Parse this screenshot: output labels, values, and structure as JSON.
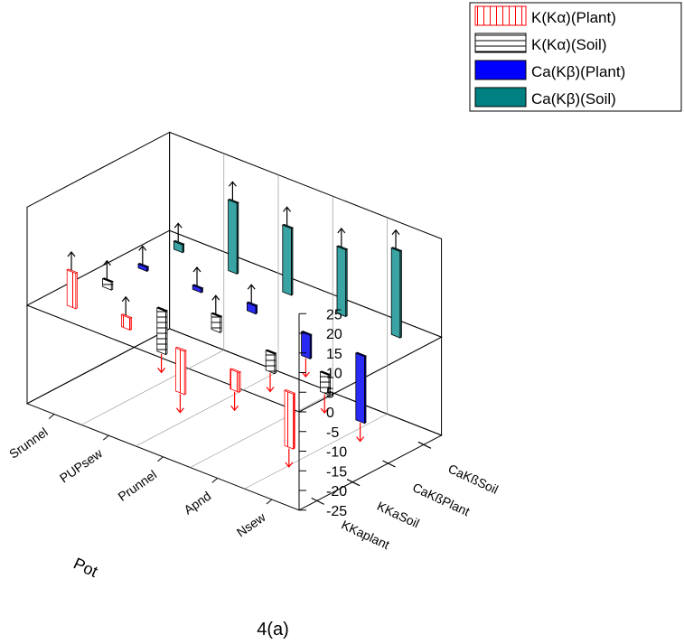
{
  "caption": "4(a)",
  "legend": [
    {
      "label": "K(Kα)(Plant)",
      "pattern": "vlines",
      "color": "#ff0000"
    },
    {
      "label": "K(Kα)(Soil)",
      "pattern": "hlines",
      "color": "#000000"
    },
    {
      "label": "Ca(Kβ)(Plant)",
      "pattern": "solid",
      "color": "#0000ff"
    },
    {
      "label": "Ca(Kβ)(Soil)",
      "pattern": "solid",
      "color": "#008080"
    }
  ],
  "chart_data": {
    "type": "bar",
    "subtype": "3d-bar",
    "x_axis": {
      "label": "Pot",
      "categories": [
        "Srunnel",
        "PUPsew",
        "Prunnel",
        "Apnd",
        "Nsew"
      ]
    },
    "y_axis": {
      "label": "",
      "categories": [
        "KKaplant",
        "KKaSoil",
        "CaKßPlant",
        "CaKßSoil"
      ]
    },
    "z_axis": {
      "label": "",
      "ticks": [
        25,
        20,
        15,
        10,
        5,
        0,
        -5,
        -10,
        -15,
        -20,
        -25
      ],
      "range": [
        -25,
        25
      ]
    },
    "series": [
      {
        "name": "K(Kα)(Plant)",
        "row": "KKaplant",
        "values": [
          9,
          3,
          -11,
          -5,
          -14
        ]
      },
      {
        "name": "K(Kα)(Soil)",
        "row": "KKaSoil",
        "values": [
          2,
          -11,
          4,
          -5,
          -5
        ]
      },
      {
        "name": "Ca(Kβ)(Plant)",
        "row": "CaKßPlant",
        "values": [
          1,
          1,
          2,
          -6,
          -17
        ]
      },
      {
        "name": "Ca(Kβ)(Soil)",
        "row": "CaKßSoil",
        "values": [
          2,
          18,
          17,
          17,
          22
        ]
      }
    ],
    "grid": true
  }
}
